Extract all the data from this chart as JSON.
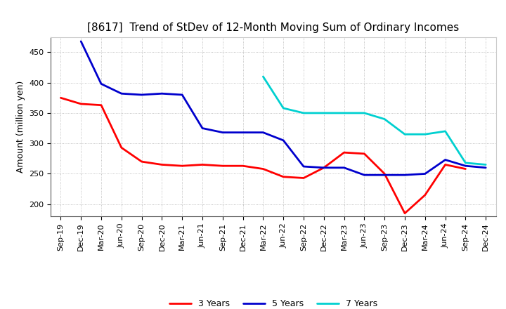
{
  "title": "[8617]  Trend of StDev of 12-Month Moving Sum of Ordinary Incomes",
  "ylabel": "Amount (million yen)",
  "x_labels": [
    "Sep-19",
    "Dec-19",
    "Mar-20",
    "Jun-20",
    "Sep-20",
    "Dec-20",
    "Mar-21",
    "Jun-21",
    "Sep-21",
    "Dec-21",
    "Mar-22",
    "Jun-22",
    "Sep-22",
    "Dec-22",
    "Mar-23",
    "Jun-23",
    "Sep-23",
    "Dec-23",
    "Mar-24",
    "Jun-24",
    "Sep-24",
    "Dec-24"
  ],
  "series": {
    "3 Years": {
      "color": "#ff0000",
      "data": [
        375,
        365,
        363,
        293,
        270,
        265,
        263,
        265,
        263,
        263,
        258,
        245,
        243,
        260,
        285,
        283,
        250,
        185,
        215,
        265,
        258,
        null
      ]
    },
    "5 Years": {
      "color": "#0000cd",
      "data": [
        null,
        468,
        398,
        382,
        380,
        382,
        380,
        325,
        318,
        318,
        318,
        305,
        262,
        260,
        260,
        248,
        248,
        248,
        250,
        273,
        263,
        260
      ]
    },
    "7 Years": {
      "color": "#00d0d0",
      "data": [
        null,
        null,
        null,
        null,
        null,
        null,
        null,
        null,
        null,
        null,
        410,
        358,
        350,
        350,
        350,
        350,
        340,
        315,
        315,
        320,
        268,
        265
      ]
    },
    "10 Years": {
      "color": "#008000",
      "data": [
        null,
        null,
        null,
        null,
        null,
        null,
        null,
        null,
        null,
        null,
        null,
        null,
        null,
        null,
        null,
        null,
        null,
        null,
        null,
        null,
        null,
        null
      ]
    }
  },
  "ylim": [
    180,
    475
  ],
  "yticks": [
    200,
    250,
    300,
    350,
    400,
    450
  ],
  "background_color": "#ffffff",
  "grid_color": "#b0b0b0",
  "title_fontsize": 11,
  "title_fontweight": "normal",
  "ylabel_fontsize": 9,
  "tick_fontsize": 8,
  "legend_fontsize": 9,
  "linewidth": 2.0
}
